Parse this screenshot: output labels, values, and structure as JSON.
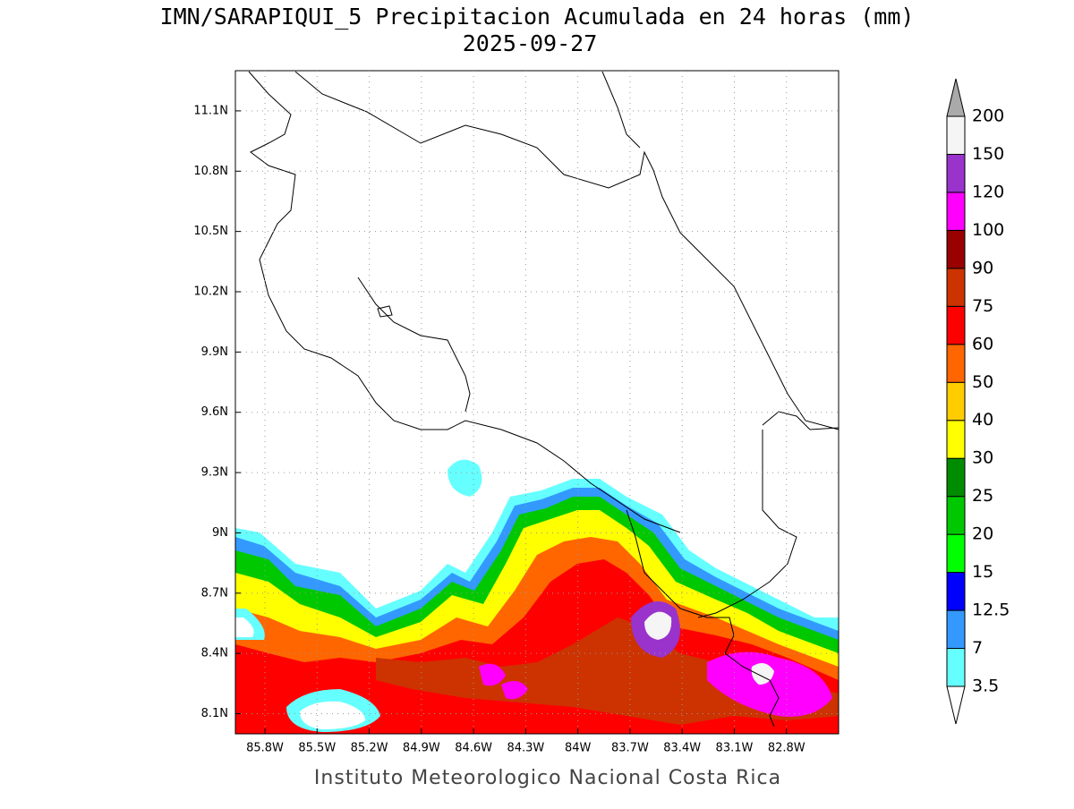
{
  "title": "IMN/SARAPIQUI_5 Precipitacion Acumulada en 24 horas (mm)",
  "date": "2025-09-27",
  "footer": "Instituto Meteorologico Nacional Costa Rica",
  "map": {
    "lonlim": [
      -85.97,
      -82.5
    ],
    "latlim": [
      8.0,
      11.3
    ],
    "lon_ticks": [
      {
        "value": -85.8,
        "label": "85.8W"
      },
      {
        "value": -85.5,
        "label": "85.5W"
      },
      {
        "value": -85.2,
        "label": "85.2W"
      },
      {
        "value": -84.9,
        "label": "84.9W"
      },
      {
        "value": -84.6,
        "label": "84.6W"
      },
      {
        "value": -84.3,
        "label": "84.3W"
      },
      {
        "value": -84.0,
        "label": "84W"
      },
      {
        "value": -83.7,
        "label": "83.7W"
      },
      {
        "value": -83.4,
        "label": "83.4W"
      },
      {
        "value": -83.1,
        "label": "83.1W"
      },
      {
        "value": -82.8,
        "label": "82.8W"
      }
    ],
    "lat_ticks": [
      {
        "value": 8.1,
        "label": "8.1N"
      },
      {
        "value": 8.4,
        "label": "8.4N"
      },
      {
        "value": 8.7,
        "label": "8.7N"
      },
      {
        "value": 9.0,
        "label": "9N"
      },
      {
        "value": 9.3,
        "label": "9.3N"
      },
      {
        "value": 9.6,
        "label": "9.6N"
      },
      {
        "value": 9.9,
        "label": "9.9N"
      },
      {
        "value": 10.2,
        "label": "10.2N"
      },
      {
        "value": 10.5,
        "label": "10.5N"
      },
      {
        "value": 10.8,
        "label": "10.8N"
      },
      {
        "value": 11.1,
        "label": "11.1N"
      }
    ],
    "grid": true
  },
  "legend": {
    "levels": [
      3.5,
      7,
      12.5,
      15,
      20,
      25,
      30,
      40,
      50,
      60,
      75,
      90,
      100,
      120,
      150,
      200
    ],
    "colors": [
      "#66ffff",
      "#3399ff",
      "#0000ff",
      "#00ff00",
      "#00c800",
      "#008c00",
      "#ffff00",
      "#ffcc00",
      "#ff6600",
      "#ff0000",
      "#cc3300",
      "#990000",
      "#ff00ff",
      "#9933cc",
      "#f5f5f5"
    ],
    "over_color": "#aaaaaa",
    "under_color": "#ffffff"
  }
}
